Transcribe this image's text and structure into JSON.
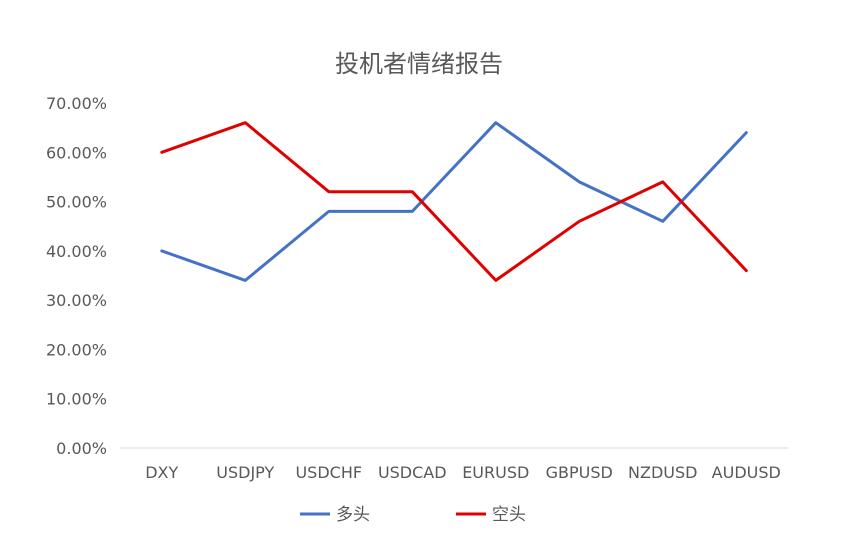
{
  "chart_data": {
    "type": "line",
    "title": "投机者情绪报告",
    "categories": [
      "DXY",
      "USDJPY",
      "USDCHF",
      "USDCAD",
      "EURUSD",
      "GBPUSD",
      "NZDUSD",
      "AUDUSD"
    ],
    "series": [
      {
        "name": "多头",
        "color": "#4472C4",
        "values": [
          0.4,
          0.34,
          0.48,
          0.48,
          0.66,
          0.54,
          0.46,
          0.64
        ]
      },
      {
        "name": "空头",
        "color": "#E00000",
        "values": [
          0.6,
          0.66,
          0.52,
          0.52,
          0.34,
          0.46,
          0.54,
          0.36
        ]
      }
    ],
    "yticks": [
      "0.00%",
      "10.00%",
      "20.00%",
      "30.00%",
      "40.00%",
      "50.00%",
      "60.00%",
      "70.00%"
    ],
    "ylim": [
      0,
      0.7
    ],
    "xlabel": "",
    "ylabel": "",
    "grid": false,
    "legend": "bottom"
  }
}
